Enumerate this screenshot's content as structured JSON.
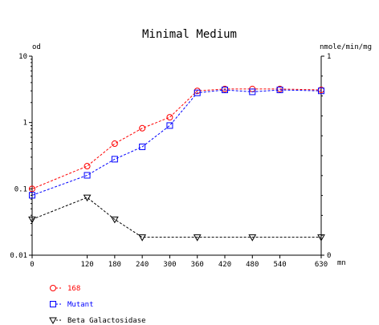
{
  "chart_data": {
    "type": "line",
    "title": "Minimal Medium",
    "x_unit": "mn",
    "y_left_label": "od",
    "y_right_label": "nmole/min/mg",
    "x_ticks": [
      "0",
      "120",
      "180",
      "240",
      "300",
      "360",
      "420",
      "480",
      "540",
      "630"
    ],
    "y_left_ticks": [
      "0.01",
      "0.1",
      "1",
      "10"
    ],
    "y_right_ticks": [
      "0",
      "1"
    ],
    "y_left_scale": "log",
    "y_left_range": [
      0.01,
      10
    ],
    "y_right_range": [
      0,
      1
    ],
    "x_range": [
      0,
      630
    ],
    "series": [
      {
        "name": "168",
        "color": "#ff0000",
        "marker": "circle",
        "axis": "left",
        "x": [
          0,
          120,
          180,
          240,
          300,
          360,
          420,
          480,
          540,
          630
        ],
        "y": [
          0.1,
          0.22,
          0.48,
          0.82,
          1.2,
          3.0,
          3.2,
          3.2,
          3.2,
          3.1
        ]
      },
      {
        "name": "Mutant",
        "color": "#0000ff",
        "marker": "square",
        "axis": "left",
        "x": [
          0,
          120,
          180,
          240,
          300,
          360,
          420,
          480,
          540,
          630
        ],
        "y": [
          0.08,
          0.16,
          0.28,
          0.43,
          0.9,
          2.8,
          3.1,
          2.9,
          3.1,
          3.0
        ]
      },
      {
        "name": "Beta Galactosidase",
        "color": "#000000",
        "marker": "triangle-down",
        "axis": "right",
        "x": [
          0,
          120,
          180,
          240,
          360,
          480,
          630
        ],
        "y": [
          0.18,
          0.29,
          0.18,
          0.09,
          0.09,
          0.09,
          0.09
        ]
      }
    ]
  }
}
